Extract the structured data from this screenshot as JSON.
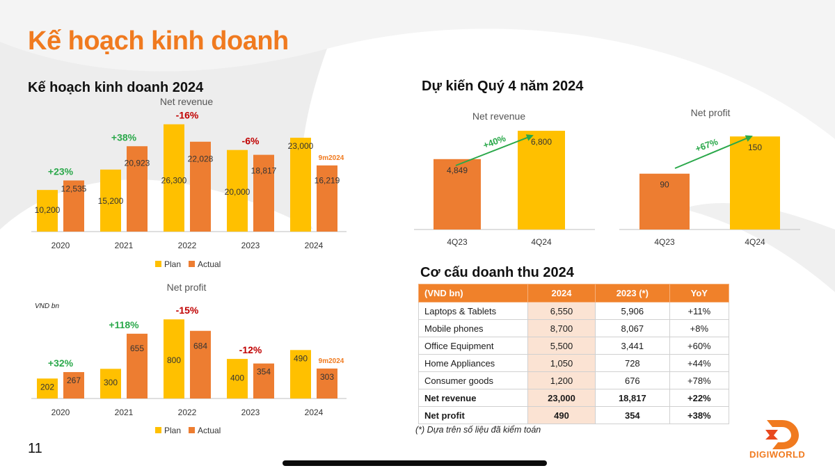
{
  "page": {
    "title": "Kế hoạch kinh doanh",
    "number": "11",
    "logo_text": "DIGIWORLD",
    "colors": {
      "plan": "#ffc000",
      "actual": "#ed7d31",
      "accent": "#f07a1f",
      "positive": "#2aa84a",
      "negative": "#c00000"
    }
  },
  "sections": {
    "plan_title": "Kế hoạch kinh doanh 2024",
    "q4_title": "Dự kiến Quý 4 năm 2024",
    "table_title": "Cơ cấu doanh thu 2024"
  },
  "chart_data": [
    {
      "id": "annual-revenue",
      "type": "bar",
      "title": "Net revenue",
      "categories": [
        "2020",
        "2021",
        "2022",
        "2023",
        "2024"
      ],
      "series": [
        {
          "name": "Plan",
          "values": [
            10200,
            15200,
            26300,
            20000,
            23000
          ],
          "labels": [
            "10,200",
            "15,200",
            "26,300",
            "20,000",
            "23,000"
          ]
        },
        {
          "name": "Actual",
          "values": [
            12535,
            20923,
            22028,
            18817,
            16219
          ],
          "labels": [
            "12,535",
            "20,923",
            "22,028",
            "18,817",
            "16,219"
          ]
        }
      ],
      "growth": [
        "+23%",
        "+38%",
        "-16%",
        "-6%",
        ""
      ],
      "annotation": "9m2024",
      "legend": [
        "Plan",
        "Actual"
      ],
      "ylim": [
        0,
        30000
      ]
    },
    {
      "id": "annual-profit",
      "type": "bar",
      "title": "Net profit",
      "unit_label": "VND bn",
      "categories": [
        "2020",
        "2021",
        "2022",
        "2023",
        "2024"
      ],
      "series": [
        {
          "name": "Plan",
          "values": [
            202,
            300,
            800,
            400,
            490
          ],
          "labels": [
            "202",
            "300",
            "800",
            "400",
            "490"
          ]
        },
        {
          "name": "Actual",
          "values": [
            267,
            655,
            684,
            354,
            303
          ],
          "labels": [
            "267",
            "655",
            "684",
            "354",
            "303"
          ]
        }
      ],
      "growth": [
        "+32%",
        "+118%",
        "-15%",
        "-12%",
        ""
      ],
      "annotation": "9m2024",
      "legend": [
        "Plan",
        "Actual"
      ],
      "ylim": [
        0,
        900
      ]
    },
    {
      "id": "q4-revenue",
      "type": "bar",
      "title": "Net revenue",
      "categories": [
        "4Q23",
        "4Q24"
      ],
      "values": [
        4849,
        6800
      ],
      "labels": [
        "4,849",
        "6,800"
      ],
      "growth": "+40%",
      "ylim": [
        0,
        8000
      ]
    },
    {
      "id": "q4-profit",
      "type": "bar",
      "title": "Net profit",
      "categories": [
        "4Q23",
        "4Q24"
      ],
      "values": [
        90,
        150
      ],
      "labels": [
        "90",
        "150"
      ],
      "growth": "+67%",
      "ylim": [
        0,
        185
      ]
    }
  ],
  "table": {
    "headers": [
      "(VND bn)",
      "2024",
      "2023 (*)",
      "YoY"
    ],
    "rows": [
      {
        "cells": [
          "Laptops & Tablets",
          "6,550",
          "5,906",
          "+11%"
        ],
        "bold": false
      },
      {
        "cells": [
          "Mobile phones",
          "8,700",
          "8,067",
          "+8%"
        ],
        "bold": false
      },
      {
        "cells": [
          "Office Equipment",
          "5,500",
          "3,441",
          "+60%"
        ],
        "bold": false
      },
      {
        "cells": [
          "Home Appliances",
          "1,050",
          "728",
          "+44%"
        ],
        "bold": false
      },
      {
        "cells": [
          "Consumer goods",
          "1,200",
          "676",
          "+78%"
        ],
        "bold": false
      },
      {
        "cells": [
          "Net revenue",
          "23,000",
          "18,817",
          "+22%"
        ],
        "bold": true
      },
      {
        "cells": [
          "Net profit",
          "490",
          "354",
          "+38%"
        ],
        "bold": true
      }
    ],
    "footnote": "(*) Dựa trên số liệu đã kiểm toán"
  }
}
